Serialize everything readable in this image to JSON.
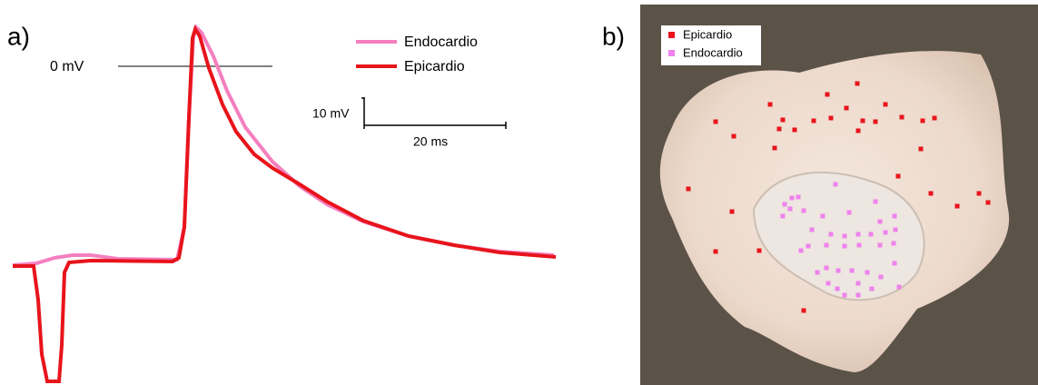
{
  "panel_a": {
    "label": "a)",
    "zero_label": "0 mV",
    "scale_v": "10 mV",
    "scale_t": "20 ms",
    "legend": [
      "Endocardio",
      "Epicardio"
    ]
  },
  "panel_b": {
    "label": "b)",
    "legend": [
      "Epicardio",
      "Endocardio"
    ]
  }
}
